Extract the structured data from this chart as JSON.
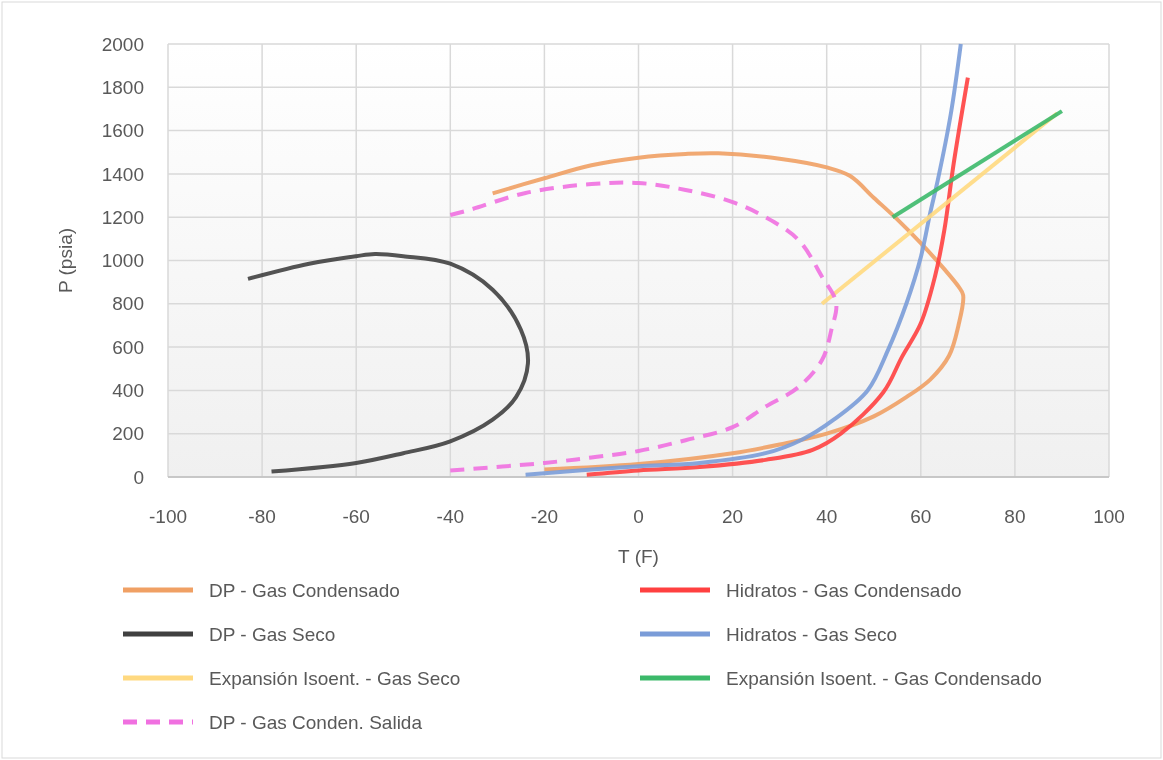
{
  "chart_data": {
    "type": "line",
    "xlabel": "T (F)",
    "ylabel": "P (psia)",
    "xlim": [
      -100,
      100
    ],
    "xticks": [
      -100,
      -80,
      -60,
      -40,
      -20,
      0,
      20,
      40,
      60,
      80,
      100
    ],
    "ylim": [
      0,
      2000
    ],
    "yticks": [
      0,
      200,
      400,
      600,
      800,
      1000,
      1200,
      1400,
      1600,
      1800,
      2000
    ],
    "grid": true,
    "legend": "bottom",
    "marker": "none",
    "series": [
      {
        "name": "DP - Gas Condensado",
        "color": "#f0a064",
        "x": [
          -31,
          -20,
          -10,
          0,
          10,
          17,
          30,
          40,
          45,
          50,
          55,
          60,
          65,
          68,
          69,
          68,
          66,
          62,
          57,
          50,
          40,
          30,
          20,
          0,
          -20
        ],
        "values": [
          1310,
          1380,
          1440,
          1475,
          1492,
          1495,
          1470,
          1430,
          1390,
          1290,
          1190,
          1080,
          960,
          880,
          840,
          700,
          560,
          450,
          370,
          280,
          200,
          150,
          110,
          60,
          35
        ]
      },
      {
        "name": "Hidratos - Gas Condensado",
        "color": "#ff4040",
        "x": [
          -11,
          0,
          13,
          27,
          37,
          43,
          52,
          56,
          60,
          63,
          65,
          67,
          70
        ],
        "values": [
          10,
          30,
          46,
          79,
          125,
          200,
          390,
          555,
          710,
          925,
          1140,
          1450,
          1845
        ]
      },
      {
        "name": "DP - Gas Seco",
        "color": "#404040",
        "x": [
          -83,
          -70,
          -60,
          -56,
          -50,
          -40,
          -31,
          -25,
          -23.5,
          -26,
          -31,
          -40,
          -50,
          -60,
          -78
        ],
        "values": [
          915,
          985,
          1020,
          1030,
          1020,
          985,
          865,
          680,
          525,
          370,
          265,
          165,
          110,
          65,
          25
        ]
      },
      {
        "name": "Hidratos - Gas Seco",
        "color": "#7a9cd8",
        "x": [
          -24,
          -10,
          0,
          13,
          27,
          34.5,
          41.5,
          48.7,
          53,
          57,
          60,
          62,
          63.6,
          66.4,
          68.5
        ],
        "values": [
          10,
          35,
          50,
          65,
          110,
          170,
          265,
          400,
          585,
          805,
          1015,
          1220,
          1370,
          1680,
          2000
        ]
      },
      {
        "name": "Expansión Isoent. - Gas Seco",
        "color": "#ffd980",
        "x": [
          39,
          89
        ],
        "values": [
          800,
          1680
        ]
      },
      {
        "name": "Expansión Isoent. - Gas Condensado",
        "color": "#3cb96a",
        "x": [
          54,
          90
        ],
        "values": [
          1200,
          1690
        ]
      },
      {
        "name": "DP - Gas Conden. Salida",
        "color": "#f070e0",
        "line_style": "dashed",
        "x": [
          -40,
          -36,
          -24,
          -10,
          0,
          10,
          20,
          27,
          34,
          39,
          42,
          41,
          39,
          34,
          27,
          20,
          10,
          0,
          -10,
          -20,
          -40
        ],
        "values": [
          1210,
          1233,
          1312,
          1353,
          1358,
          1326,
          1270,
          1200,
          1095,
          925,
          805,
          680,
          540,
          415,
          325,
          230,
          170,
          120,
          90,
          65,
          30
        ]
      }
    ]
  }
}
